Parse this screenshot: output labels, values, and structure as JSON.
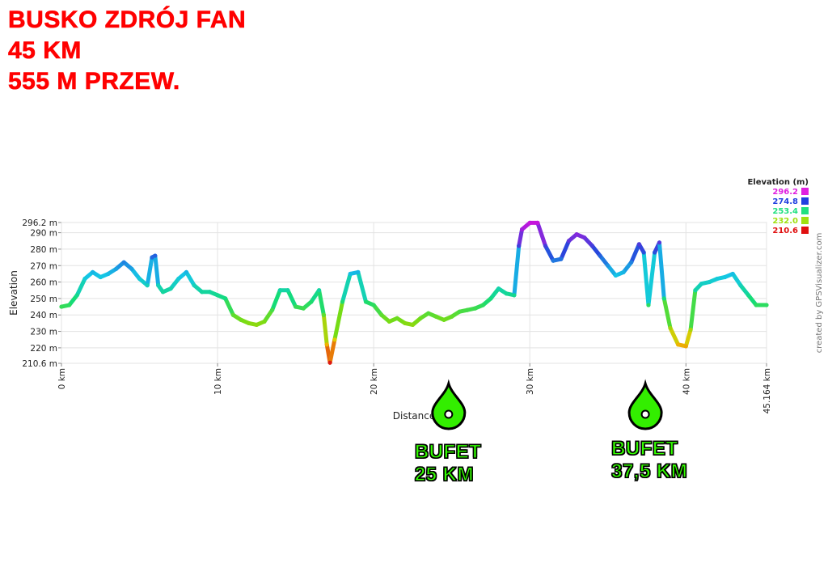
{
  "header": {
    "line1": "BUSKO ZDRÓJ FAN",
    "line2": "45 KM",
    "line3": "555 M PRZEW."
  },
  "legend": {
    "title": "Elevation (m)",
    "items": [
      {
        "label": "296.2",
        "color": "#e020e0"
      },
      {
        "label": "274.8",
        "color": "#2040e0"
      },
      {
        "label": "253.4",
        "color": "#20e080"
      },
      {
        "label": "232.0",
        "color": "#a0e010"
      },
      {
        "label": "210.6",
        "color": "#e01010"
      }
    ]
  },
  "credit": "created by GPSVisualizer.com",
  "markers": [
    {
      "line1": "BUFET",
      "line2": "25 KM",
      "km": 24.8,
      "icon": "water-drop-icon"
    },
    {
      "line1": "BUFET",
      "line2": "37,5 KM",
      "km": 37.4,
      "icon": "water-drop-icon"
    }
  ],
  "chart_data": {
    "type": "line",
    "xlabel": "Distance",
    "ylabel": "Elevation",
    "xlim": [
      0,
      45.164
    ],
    "ylim": [
      210.6,
      296.2
    ],
    "xticks": [
      0,
      10,
      20,
      30,
      40,
      45.164
    ],
    "xtick_labels": [
      "0 km",
      "10 km",
      "20 km",
      "30 km",
      "40 km",
      "45.164 km"
    ],
    "yticks": [
      210.6,
      220,
      230,
      240,
      250,
      260,
      270,
      280,
      290,
      296.2
    ],
    "ytick_labels": [
      "210.6 m",
      "220 m",
      "230 m",
      "240 m",
      "250 m",
      "260 m",
      "270 m",
      "280 m",
      "290 m",
      "296.2 m"
    ],
    "grid": true,
    "series": [
      {
        "x": [
          0,
          0.5,
          1,
          1.5,
          2,
          2.5,
          3,
          3.5,
          4,
          4.5,
          5,
          5.5,
          5.8,
          6,
          6.2,
          6.5,
          7,
          7.5,
          8,
          8.5,
          9,
          9.5,
          10,
          10.5,
          11,
          11.5,
          12,
          12.5,
          13,
          13.5,
          14,
          14.5,
          15,
          15.5,
          16,
          16.5,
          16.8,
          17,
          17.2,
          17.5,
          18,
          18.5,
          19,
          19.5,
          20,
          20.5,
          21,
          21.5,
          22,
          22.5,
          23,
          23.5,
          24,
          24.5,
          25,
          25.5,
          26,
          26.5,
          27,
          27.5,
          28,
          28.5,
          29,
          29.3,
          29.5,
          30,
          30.5,
          31,
          31.5,
          32,
          32.5,
          33,
          33.5,
          34,
          34.5,
          35,
          35.5,
          36,
          36.5,
          37,
          37.3,
          37.6,
          38,
          38.3,
          38.6,
          39,
          39.5,
          40,
          40.3,
          40.6,
          41,
          41.5,
          42,
          42.5,
          43,
          43.5,
          44,
          44.5,
          45.164
        ],
        "y": [
          245,
          246,
          252,
          262,
          266,
          263,
          265,
          268,
          272,
          268,
          262,
          258,
          275,
          276,
          258,
          254,
          256,
          262,
          266,
          258,
          254,
          254,
          252,
          250,
          240,
          237,
          235,
          234,
          236,
          243,
          255,
          255,
          245,
          244,
          248,
          255,
          240,
          222,
          211,
          225,
          248,
          265,
          266,
          248,
          246,
          240,
          236,
          238,
          235,
          234,
          238,
          241,
          239,
          237,
          239,
          242,
          243,
          244,
          246,
          250,
          256,
          253,
          252,
          282,
          292,
          296,
          296,
          282,
          273,
          274,
          285,
          289,
          287,
          282,
          276,
          270,
          264,
          266,
          272,
          283,
          278,
          246,
          278,
          284,
          250,
          232,
          222,
          221,
          231,
          255,
          259,
          260,
          262,
          263,
          265,
          258,
          252,
          246,
          246
        ]
      }
    ]
  }
}
